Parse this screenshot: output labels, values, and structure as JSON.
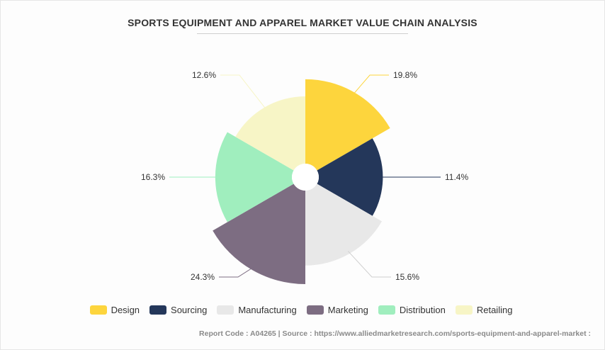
{
  "title": "SPORTS EQUIPMENT AND APPAREL MARKET VALUE CHAIN ANALYSIS",
  "footer": "Report Code : A04265  |  Source : https://www.alliedmarketresearch.com/sports-equipment-and-apparel-market :",
  "chart_data": {
    "type": "pie",
    "subtype": "rose",
    "title": "SPORTS EQUIPMENT AND APPAREL MARKET VALUE CHAIN ANALYSIS",
    "legend_position": "bottom",
    "series": [
      {
        "name": "Design",
        "value": 19.8,
        "label": "19.8%",
        "color": "#FDD53D"
      },
      {
        "name": "Sourcing",
        "value": 11.4,
        "label": "11.4%",
        "color": "#24375A"
      },
      {
        "name": "Manufacturing",
        "value": 15.6,
        "label": "15.6%",
        "color": "#E8E8E8"
      },
      {
        "name": "Marketing",
        "value": 24.3,
        "label": "24.3%",
        "color": "#7D6D82"
      },
      {
        "name": "Distribution",
        "value": 16.3,
        "label": "16.3%",
        "color": "#A0EEBE"
      },
      {
        "name": "Retailing",
        "value": 12.6,
        "label": "12.6%",
        "color": "#F7F5C6"
      }
    ]
  }
}
